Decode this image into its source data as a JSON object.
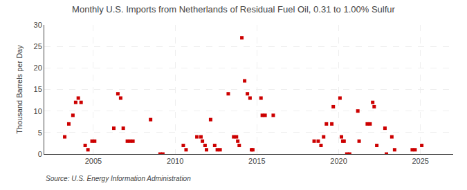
{
  "chart_data": {
    "type": "scatter",
    "title": "Monthly U.S. Imports from Netherlands of Residual Fuel Oil, 0.31 to 1.00% Sulfur",
    "ylabel": "Thousand Barrels per Day",
    "annotations": [
      "Source: U.S. Energy Information Administration"
    ],
    "color": "#cc0000",
    "marker": "square",
    "grid": true,
    "xlim": [
      2002.0,
      2027.0
    ],
    "xticks": [
      2005,
      2010,
      2015,
      2020,
      2025
    ],
    "ylim": [
      0,
      30
    ],
    "yticks": [
      0,
      5,
      10,
      15,
      20,
      25,
      30
    ],
    "x": [
      2003.25,
      2003.5,
      2003.75,
      2003.92,
      2004.08,
      2004.25,
      2004.5,
      2004.67,
      2004.92,
      2005.08,
      2006.25,
      2006.5,
      2006.67,
      2006.83,
      2007.08,
      2007.25,
      2007.42,
      2008.5,
      2009.08,
      2009.25,
      2010.5,
      2010.67,
      2011.33,
      2011.58,
      2011.67,
      2011.83,
      2011.92,
      2012.17,
      2012.42,
      2012.58,
      2012.75,
      2013.25,
      2013.58,
      2013.75,
      2013.83,
      2013.92,
      2014.08,
      2014.25,
      2014.42,
      2014.58,
      2014.67,
      2014.75,
      2015.25,
      2015.33,
      2015.5,
      2016.0,
      2018.5,
      2018.75,
      2018.92,
      2019.08,
      2019.25,
      2019.58,
      2019.67,
      2020.08,
      2020.17,
      2020.25,
      2020.33,
      2020.5,
      2020.67,
      2021.17,
      2021.25,
      2021.75,
      2021.92,
      2022.08,
      2022.17,
      2022.33,
      2022.83,
      2022.92,
      2023.25,
      2023.42,
      2024.5,
      2024.67,
      2025.08
    ],
    "values": [
      4,
      7,
      9,
      12,
      13,
      12,
      2,
      1,
      3,
      3,
      6,
      14,
      13,
      6,
      3,
      3,
      3,
      8,
      0,
      0,
      2,
      1,
      4,
      4,
      3,
      2,
      1,
      8,
      2,
      1,
      1,
      14,
      4,
      4,
      3,
      2,
      27,
      17,
      14,
      13,
      1,
      1,
      13,
      9,
      9,
      9,
      3,
      3,
      2,
      4,
      7,
      7,
      11,
      13,
      4,
      3,
      3,
      0,
      0,
      10,
      3,
      7,
      7,
      12,
      11,
      2,
      6,
      0,
      4,
      1,
      1,
      1,
      2
    ]
  }
}
